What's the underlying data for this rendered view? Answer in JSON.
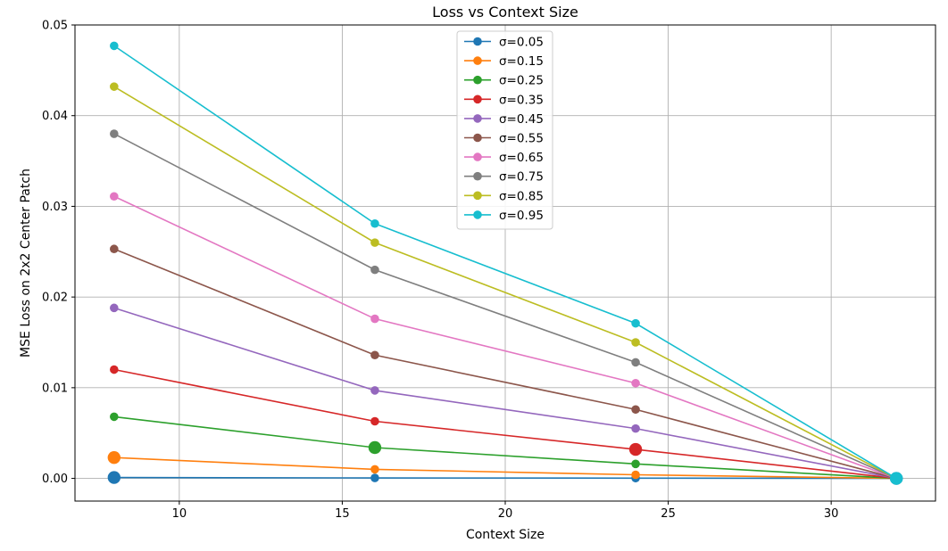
{
  "chart_data": {
    "type": "line",
    "title": "Loss vs Context Size",
    "xlabel": "Context Size",
    "ylabel": "MSE Loss on 2x2 Center Patch",
    "xlim": [
      6.8,
      33.2
    ],
    "ylim": [
      -0.0025,
      0.05
    ],
    "xticks": [
      10,
      15,
      20,
      25,
      30
    ],
    "yticks": [
      0.0,
      0.01,
      0.02,
      0.03,
      0.04,
      0.05
    ],
    "ytick_labels": [
      "0.00",
      "0.01",
      "0.02",
      "0.03",
      "0.04",
      "0.05"
    ],
    "grid": true,
    "legend_position": "top-center",
    "x": [
      8,
      16,
      24,
      32
    ],
    "series": [
      {
        "name": "σ=0.05",
        "color": "#1f77b4",
        "values": [
          0.0001,
          5e-05,
          3e-05,
          0.0
        ],
        "highlight": [
          0,
          3
        ]
      },
      {
        "name": "σ=0.15",
        "color": "#ff7f0e",
        "values": [
          0.0023,
          0.001,
          0.0004,
          0.0
        ],
        "highlight": [
          0
        ]
      },
      {
        "name": "σ=0.25",
        "color": "#2ca02c",
        "values": [
          0.0068,
          0.0034,
          0.0016,
          0.0
        ],
        "highlight": [
          1
        ]
      },
      {
        "name": "σ=0.35",
        "color": "#d62728",
        "values": [
          0.012,
          0.0063,
          0.0032,
          0.0
        ],
        "highlight": [
          2
        ]
      },
      {
        "name": "σ=0.45",
        "color": "#9467bd",
        "values": [
          0.0188,
          0.0097,
          0.0055,
          0.0
        ],
        "highlight": []
      },
      {
        "name": "σ=0.55",
        "color": "#8c564b",
        "values": [
          0.0253,
          0.0136,
          0.0076,
          0.0
        ],
        "highlight": []
      },
      {
        "name": "σ=0.65",
        "color": "#e377c2",
        "values": [
          0.0311,
          0.0176,
          0.0105,
          0.0
        ],
        "highlight": []
      },
      {
        "name": "σ=0.75",
        "color": "#7f7f7f",
        "values": [
          0.038,
          0.023,
          0.0128,
          0.0
        ],
        "highlight": []
      },
      {
        "name": "σ=0.85",
        "color": "#bcbd22",
        "values": [
          0.0432,
          0.026,
          0.015,
          0.0
        ],
        "highlight": []
      },
      {
        "name": "σ=0.95",
        "color": "#17becf",
        "values": [
          0.0477,
          0.0281,
          0.0171,
          0.0
        ],
        "highlight": [
          3
        ]
      }
    ]
  }
}
